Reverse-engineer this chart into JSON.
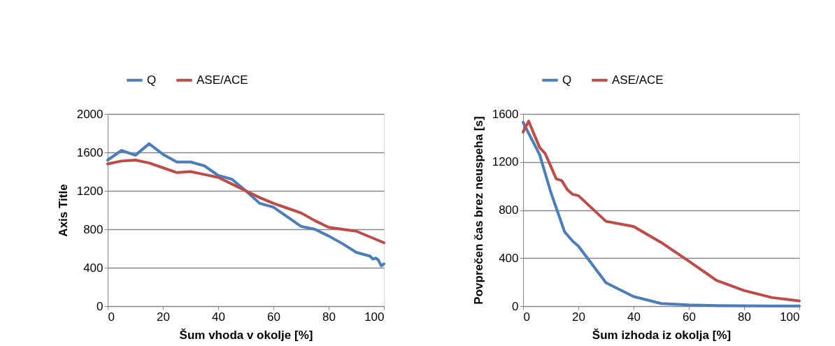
{
  "chart_data": [
    {
      "type": "line",
      "xlabel": "Šum vhoda v okolje [%]",
      "ylabel": "Axis Title",
      "xlim": [
        0,
        100
      ],
      "xticks": [
        0,
        20,
        40,
        60,
        80,
        100
      ],
      "ylim": [
        0,
        2000
      ],
      "yticks": [
        0,
        400,
        800,
        {
          "value": 1200,
          "label": "1200"
        },
        {
          "value": 1600,
          "label": "1600"
        },
        {
          "value": 2000,
          "label": "2000"
        }
      ],
      "grid": "y",
      "legend": "top",
      "marker": "none",
      "line_style": "solid",
      "series": [
        {
          "name": "Q",
          "color": "#4a7ebb",
          "x": [
            0,
            5,
            10,
            15,
            20,
            25,
            30,
            35,
            40,
            45,
            50,
            55,
            60,
            65,
            70,
            75,
            80,
            85,
            90,
            95,
            96,
            97,
            98,
            99,
            100
          ],
          "values": [
            1520,
            1620,
            1570,
            1690,
            1580,
            1500,
            1500,
            1460,
            1360,
            1320,
            1200,
            1070,
            1030,
            930,
            830,
            800,
            730,
            650,
            560,
            520,
            490,
            500,
            480,
            420,
            440
          ]
        },
        {
          "name": "ASE/ACE",
          "color": "#be4b48",
          "x": [
            0,
            5,
            10,
            15,
            20,
            25,
            30,
            35,
            40,
            45,
            50,
            55,
            60,
            65,
            70,
            75,
            80,
            85,
            90,
            95,
            100
          ],
          "values": [
            1480,
            1510,
            1520,
            1490,
            1440,
            1390,
            1400,
            1370,
            1340,
            1270,
            1200,
            1130,
            1070,
            1020,
            970,
            890,
            820,
            800,
            780,
            720,
            660
          ]
        }
      ]
    },
    {
      "type": "line",
      "xlabel": "Šum izhoda iz okolja [%]",
      "ylabel": "Povprečen čas brez neuspeha [s]",
      "xlim": [
        0,
        100
      ],
      "xticks": [
        0,
        20,
        40,
        60,
        80,
        100
      ],
      "ylim": [
        0,
        1600
      ],
      "yticks": [
        0,
        400,
        800,
        {
          "value": 1200,
          "label": "1200"
        },
        {
          "value": 1600,
          "label": "1600"
        }
      ],
      "grid": "y",
      "legend": "top",
      "marker": "none",
      "line_style": "solid",
      "series": [
        {
          "name": "Q",
          "color": "#4a7ebb",
          "x": [
            0,
            6,
            10,
            15,
            18,
            20,
            30,
            40,
            50,
            60,
            70,
            80,
            90,
            100
          ],
          "values": [
            1530,
            1260,
            950,
            620,
            540,
            500,
            195,
            80,
            22,
            10,
            5,
            3,
            2,
            1
          ]
        },
        {
          "name": "ASE/ACE",
          "color": "#be4b48",
          "x": [
            0,
            2,
            6,
            8,
            12,
            14,
            16,
            18,
            20,
            30,
            40,
            50,
            60,
            70,
            80,
            90,
            100
          ],
          "values": [
            1450,
            1540,
            1320,
            1270,
            1060,
            1045,
            970,
            930,
            920,
            706,
            663,
            530,
            375,
            215,
            130,
            72,
            43
          ]
        }
      ]
    }
  ]
}
